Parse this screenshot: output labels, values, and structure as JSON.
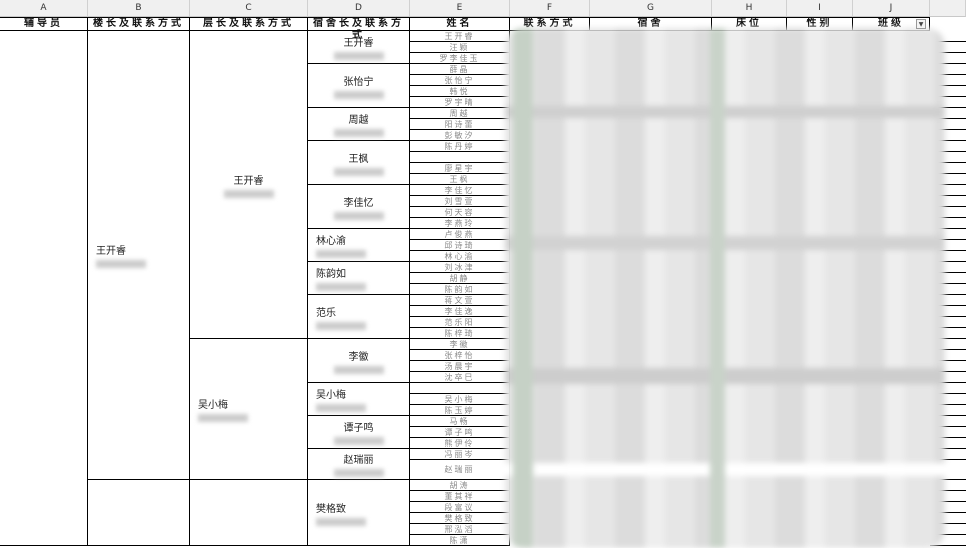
{
  "column_letters": [
    "A",
    "B",
    "C",
    "D",
    "E",
    "F",
    "G",
    "H",
    "I",
    "J"
  ],
  "headers": [
    "辅导员",
    "楼长及联系方式",
    "层长及联系方式",
    "宿舍长及联系方式",
    "姓名",
    "联系方式",
    "宿舍",
    "床位",
    "性别",
    "班级"
  ],
  "filter_icon": "▼",
  "names": [
    "王开睿",
    "汪颖",
    "罗李佳玉",
    "薛晶",
    "张怡宁",
    "韩悦",
    "罗宇晴",
    "周越",
    "阳诗蕾",
    "彭敏汐",
    "陈丹婷",
    "",
    "廖星宇",
    "王枫",
    "李佳忆",
    "刘雪萱",
    "何天容",
    "李燕玲",
    "卢俊燕",
    "邱诗琦",
    "林心渝",
    "刘冰津",
    "胡静",
    "陈韵如",
    "蒋文萱",
    "李佳逸",
    "范乐阳",
    "陈梓琦",
    "李徽",
    "张梓怡",
    "汤晨宇",
    "沈卒巳",
    "",
    "吴小梅",
    "陈玉婷",
    "马畅",
    "谭子鸣",
    "熊伊伶",
    "冯丽岑",
    "赵瑞丽",
    "胡涛",
    "董其祥",
    "段富议",
    "樊格致",
    "邢泓滔",
    "陈潇"
  ],
  "dorm_leaders": [
    {
      "name": "王开睿",
      "rows": 3
    },
    {
      "name": "张怡宁",
      "rows": 4
    },
    {
      "name": "周越",
      "rows": 3
    },
    {
      "name": "王枫",
      "rows": 4
    },
    {
      "name": "李佳忆",
      "rows": 4
    },
    {
      "name": "林心渝",
      "rows": 3,
      "left": true
    },
    {
      "name": "陈韵如",
      "rows": 3,
      "left": true
    },
    {
      "name": "范乐",
      "rows": 4,
      "left": true
    },
    {
      "name": "李徽",
      "rows": 4
    },
    {
      "name": "吴小梅",
      "rows": 3,
      "left": true
    },
    {
      "name": "谭子鸣",
      "rows": 3
    },
    {
      "name": "赵瑞丽",
      "rows": 2
    },
    {
      "name": "樊格致",
      "rows": 6,
      "left": true
    }
  ],
  "floor_leaders": [
    {
      "name": "王开睿",
      "rows": 28
    },
    {
      "name": "吴小梅",
      "rows": 12,
      "left": true
    },
    {
      "name": "",
      "rows": 6
    }
  ],
  "building_leaders": [
    {
      "name": "王开睿",
      "rows": 40,
      "left": true
    },
    {
      "name": "",
      "rows": 6
    }
  ],
  "counselors": [
    {
      "name": "",
      "rows": 46
    }
  ]
}
